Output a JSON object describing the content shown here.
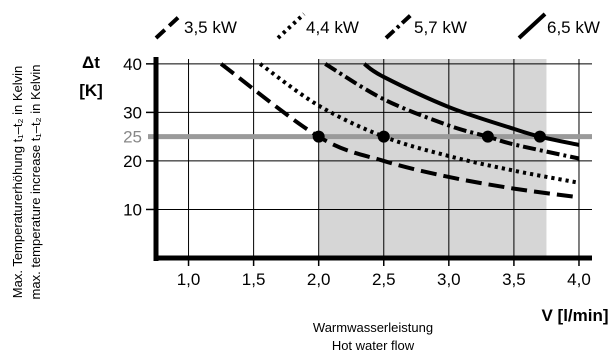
{
  "chart_data": {
    "type": "line",
    "title": "",
    "ylabel_symbol": "Δt",
    "ylabel_unit": "[K]",
    "ylabel_side_de": "Max. Temperaturerhöhung t₁–t₂ in Kelvin",
    "ylabel_side_en": "max. temperature increase t₁–t₂ in Kelvin",
    "xlabel_unit": "V [l/min]",
    "xlabel_de": "Warmwasserleistung",
    "xlabel_en": "Hot water flow",
    "xlim": [
      0.75,
      4.1
    ],
    "ylim": [
      0,
      41
    ],
    "x_ticks": [
      1.0,
      1.5,
      2.0,
      2.5,
      3.0,
      3.5,
      4.0
    ],
    "x_tick_labels": [
      "1,0",
      "1,5",
      "2,0",
      "2,5",
      "3,0",
      "3,5",
      "4,0"
    ],
    "y_ticks": [
      10,
      20,
      25,
      30,
      40
    ],
    "y_tick_labels": [
      "10",
      "20",
      "25",
      "30",
      "40"
    ],
    "grid": true,
    "shaded_region": {
      "x": [
        2.0,
        3.75
      ]
    },
    "reference_line": {
      "y": 25
    },
    "series": [
      {
        "name": "3,5 kW",
        "style": "dash",
        "x": [
          1.25,
          2.0,
          2.5,
          3.0,
          3.5,
          4.0
        ],
        "y": [
          40,
          25,
          20,
          16.7,
          14.3,
          12.5
        ]
      },
      {
        "name": "4,4 kW",
        "style": "dot",
        "x": [
          1.55,
          2.0,
          2.5,
          3.0,
          3.5,
          4.0
        ],
        "y": [
          40,
          31.4,
          25,
          21,
          18,
          15.5
        ]
      },
      {
        "name": "5,7 kW",
        "style": "dashdot",
        "x": [
          2.05,
          2.5,
          3.0,
          3.3,
          3.5,
          4.0
        ],
        "y": [
          40,
          32.7,
          27.3,
          25,
          23.4,
          20.5
        ]
      },
      {
        "name": "6,5 kW",
        "style": "solid",
        "x": [
          2.35,
          2.5,
          3.0,
          3.5,
          3.7,
          4.0
        ],
        "y": [
          40,
          37.3,
          31.1,
          26.6,
          25,
          23.3
        ]
      }
    ],
    "markers": [
      {
        "x": 2.0,
        "y": 25
      },
      {
        "x": 2.5,
        "y": 25
      },
      {
        "x": 3.3,
        "y": 25
      },
      {
        "x": 3.7,
        "y": 25
      }
    ],
    "colors": {
      "line": "#000000",
      "shade": "#d6d6d6",
      "reference": "#9a9a9a",
      "grid": "#000000"
    }
  }
}
